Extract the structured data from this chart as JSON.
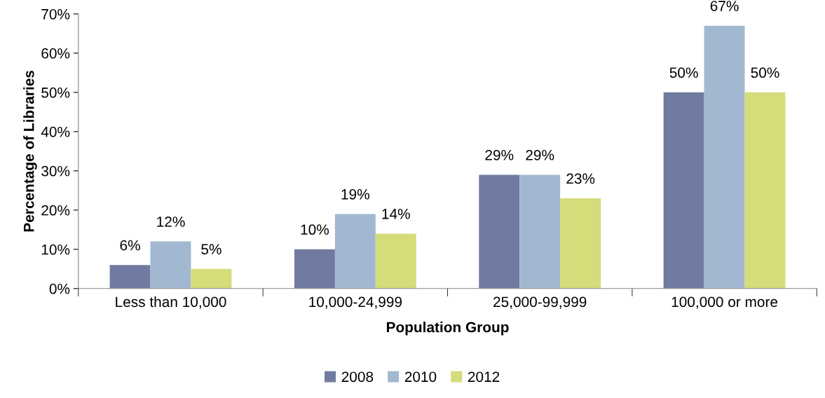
{
  "chart_data": {
    "type": "bar",
    "xlabel": "Population Group",
    "ylabel": "Percentage of Libraries",
    "categories": [
      "Less than 10,000",
      "10,000-24,999",
      "25,000-99,999",
      "100,000 or more"
    ],
    "series": [
      {
        "name": "2008",
        "color": "#717ba1",
        "values": [
          6,
          10,
          29,
          50
        ]
      },
      {
        "name": "2010",
        "color": "#a2b8d0",
        "values": [
          12,
          19,
          29,
          67
        ]
      },
      {
        "name": "2012",
        "color": "#d5dc7a",
        "values": [
          5,
          14,
          23,
          50
        ]
      }
    ],
    "value_labels": [
      [
        "6%",
        "10%",
        "29%",
        "50%"
      ],
      [
        "12%",
        "19%",
        "29%",
        "67%"
      ],
      [
        "5%",
        "14%",
        "23%",
        "50%"
      ]
    ],
    "ylim": [
      0,
      70
    ],
    "yticks": [
      {
        "value": 0,
        "label": "0%"
      },
      {
        "value": 10,
        "label": "10%"
      },
      {
        "value": 20,
        "label": "20%"
      },
      {
        "value": 30,
        "label": "30%"
      },
      {
        "value": 40,
        "label": "40%"
      },
      {
        "value": 50,
        "label": "50%"
      },
      {
        "value": 60,
        "label": "60%"
      },
      {
        "value": 70,
        "label": "70%"
      }
    ],
    "grid": false,
    "legend": "bottom"
  }
}
